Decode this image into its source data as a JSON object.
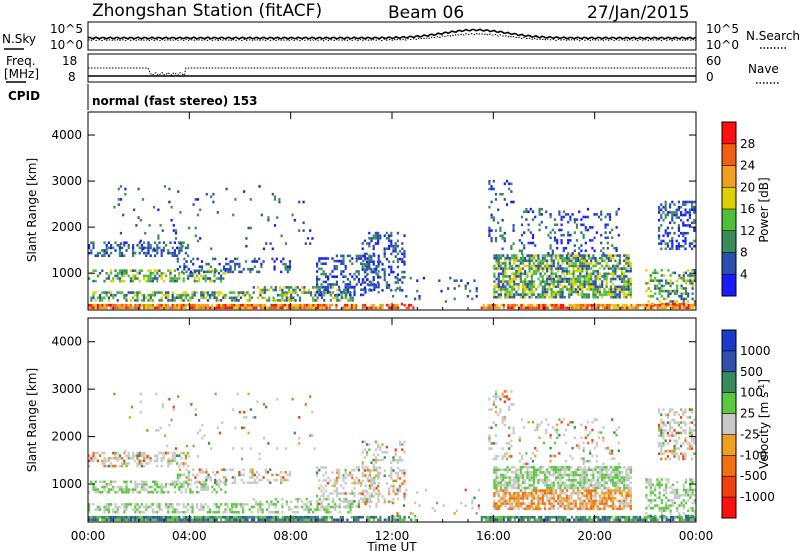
{
  "header": {
    "station": "Zhongshan Station (fitACF)",
    "beam": "Beam 06",
    "date": "27/Jan/2015",
    "cpid_label": "CPID",
    "cpid_value": "normal (fast stereo) 153"
  },
  "noise_panel": {
    "left_label": "N.Sky",
    "right_label": "N.Search",
    "left_ticks": [
      "10^5",
      "10^0"
    ],
    "right_ticks": [
      "10^5",
      "10^0"
    ]
  },
  "freq_panel": {
    "left_label_1": "Freq.",
    "left_label_2": "[MHz]",
    "right_label": "Nave",
    "left_ticks": [
      "18",
      "8"
    ],
    "right_ticks": [
      "60",
      "0"
    ]
  },
  "colors": {
    "power": [
      "#1a1aff",
      "#2a4fb0",
      "#3a8a5a",
      "#4fbf3a",
      "#e0d000",
      "#f0a020",
      "#f06010",
      "#ff1010"
    ],
    "velocity": [
      "#ff1010",
      "#f04010",
      "#f07010",
      "#f0a020",
      "#c8c8c8",
      "#5cc840",
      "#3a8a5a",
      "#3050b0",
      "#1a3acc"
    ]
  },
  "chart_data": [
    {
      "type": "heatmap",
      "title": "",
      "xlabel": "",
      "ylabel": "Slant Range [km]",
      "x_ticks": [
        "00:00",
        "04:00",
        "08:00",
        "12:00",
        "16:00",
        "20:00",
        "00:00"
      ],
      "y_ticks": [
        1000,
        2000,
        3000,
        4000
      ],
      "ylim": [
        200,
        4500
      ],
      "colorbar": {
        "label": "Power [dB]",
        "ticks": [
          "4",
          "8",
          "12",
          "16",
          "20",
          "24",
          "28"
        ],
        "range": [
          0,
          32
        ]
      }
    },
    {
      "type": "heatmap",
      "title": "",
      "xlabel": "Time UT",
      "ylabel": "Slant Range [km]",
      "x_ticks": [
        "00:00",
        "04:00",
        "08:00",
        "12:00",
        "16:00",
        "20:00",
        "00:00"
      ],
      "y_ticks": [
        1000,
        2000,
        3000,
        4000
      ],
      "ylim": [
        200,
        4500
      ],
      "colorbar": {
        "label": "Velocity [m s",
        "label_sup": "-1",
        "label_end": "]",
        "ticks": [
          "1000",
          "500",
          "100",
          "25",
          "-25",
          "-100",
          "-500",
          "-1000"
        ]
      }
    }
  ]
}
